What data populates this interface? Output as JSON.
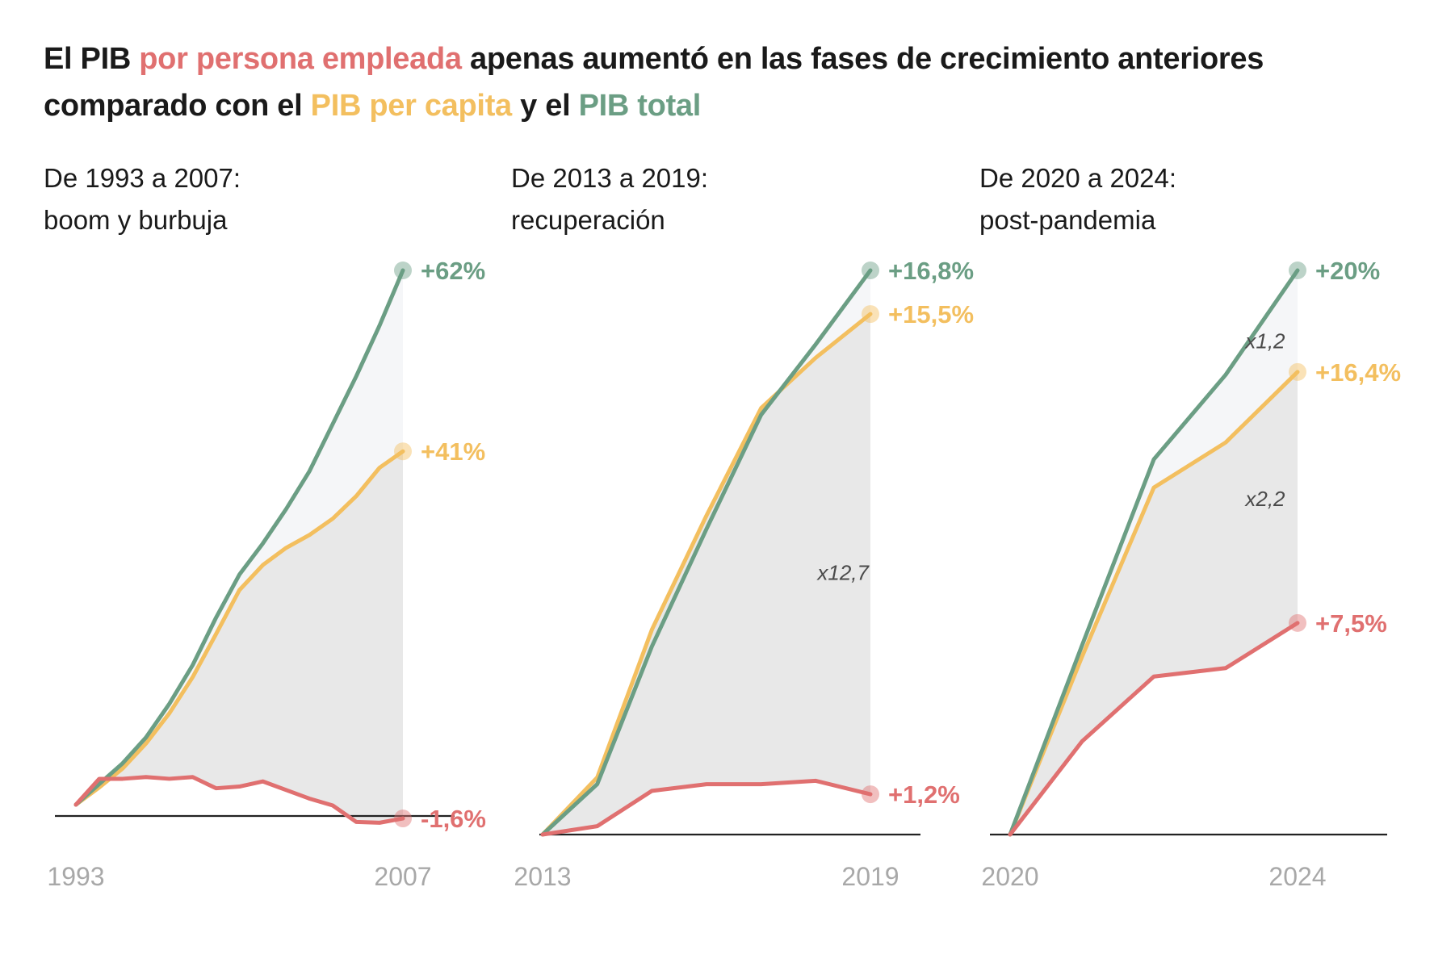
{
  "title": {
    "part1": "El PIB ",
    "part2": "por persona empleada",
    "part3": " apenas aumentó en las fases de crecimiento anteriores comparado con el ",
    "part4": "PIB per capita",
    "part5": " y el ",
    "part6": "PIB total"
  },
  "colors": {
    "total": "#6b9e84",
    "per_capita": "#f3bf5f",
    "per_employee": "#e07070",
    "fill_upper": "#f5f6f8",
    "fill_lower": "#e8e8e8",
    "axis": "#222222"
  },
  "chart_data": [
    {
      "type": "line",
      "title_line1": "De 1993 a 2007:",
      "title_line2": "boom y burbuja",
      "x": [
        1993,
        1994,
        1995,
        1996,
        1997,
        1998,
        1999,
        2000,
        2001,
        2002,
        2003,
        2004,
        2005,
        2006,
        2007
      ],
      "x_ticks": [
        "1993",
        "2007"
      ],
      "ylim": [
        -3,
        62
      ],
      "series": [
        {
          "key": "total",
          "values": [
            0,
            2.4,
            4.8,
            7.8,
            11.7,
            16.2,
            21.7,
            26.7,
            30.3,
            34.3,
            38.7,
            44.2,
            49.7,
            55.6,
            62
          ],
          "end_label": "+62%"
        },
        {
          "key": "per_capita",
          "values": [
            0,
            2,
            4.2,
            7.1,
            10.6,
            14.8,
            19.8,
            24.9,
            27.8,
            29.8,
            31.3,
            33.2,
            35.8,
            39.1,
            41
          ],
          "end_label": "+41%"
        },
        {
          "key": "per_employee",
          "values": [
            0,
            3,
            3,
            3.2,
            3,
            3.2,
            1.9,
            2.1,
            2.7,
            1.7,
            0.7,
            -0.1,
            -2,
            -2.1,
            -1.6
          ],
          "end_label": "-1,6%"
        }
      ],
      "ratio_labels": []
    },
    {
      "type": "line",
      "title_line1": "De 2013 a 2019:",
      "title_line2": "recuperación",
      "x": [
        2013,
        2014,
        2015,
        2016,
        2017,
        2018,
        2019
      ],
      "x_ticks": [
        "2013",
        "2019"
      ],
      "ylim": [
        0,
        16.8
      ],
      "series": [
        {
          "key": "total",
          "values": [
            0,
            1.5,
            5.6,
            9.1,
            12.5,
            14.6,
            16.8
          ],
          "end_label": "+16,8%"
        },
        {
          "key": "per_capita",
          "values": [
            0,
            1.7,
            6.1,
            9.5,
            12.7,
            14.2,
            15.5
          ],
          "end_label": "+15,5%"
        },
        {
          "key": "per_employee",
          "values": [
            0,
            0.25,
            1.3,
            1.5,
            1.5,
            1.6,
            1.2
          ],
          "end_label": "+1,2%"
        }
      ],
      "ratio_labels": [
        {
          "text": "x12,7",
          "x": 2018.5,
          "y": 7.8
        }
      ]
    },
    {
      "type": "line",
      "title_line1": "De 2020 a 2024:",
      "title_line2": "post-pandemia",
      "x": [
        2020,
        2021,
        2022,
        2023,
        2024
      ],
      "x_ticks": [
        "2020",
        "2024"
      ],
      "ylim": [
        0,
        20
      ],
      "series": [
        {
          "key": "total",
          "values": [
            0,
            6.7,
            13.3,
            16.3,
            20
          ],
          "end_label": "+20%"
        },
        {
          "key": "per_capita",
          "values": [
            0,
            6.3,
            12.3,
            13.9,
            16.4
          ],
          "end_label": "+16,4%"
        },
        {
          "key": "per_employee",
          "values": [
            0,
            3.3,
            5.6,
            5.9,
            7.5
          ],
          "end_label": "+7,5%"
        }
      ],
      "ratio_labels": [
        {
          "text": "x1,2",
          "x": 2023.55,
          "y": 17.5
        },
        {
          "text": "x2,2",
          "x": 2023.55,
          "y": 11.9
        }
      ]
    }
  ]
}
